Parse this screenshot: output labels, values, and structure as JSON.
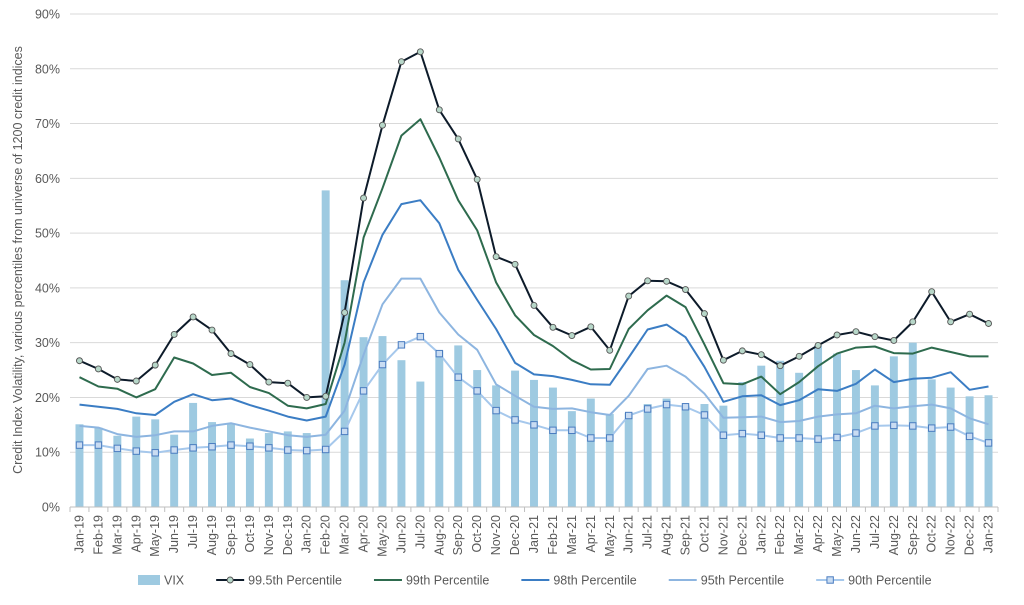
{
  "chart_data": {
    "type": "bar",
    "title": "",
    "xlabel": "",
    "ylabel": "Credit Index Volatility, various percentiles from universe of 1200 credit indices",
    "ylim": [
      0,
      90
    ],
    "ytick_labels": [
      "0%",
      "10%",
      "20%",
      "30%",
      "40%",
      "50%",
      "60%",
      "70%",
      "80%",
      "90%"
    ],
    "grid": "horizontal",
    "legend_position": "bottom",
    "categories": [
      "Jan-19",
      "Feb-19",
      "Mar-19",
      "Apr-19",
      "May-19",
      "Jun-19",
      "Jul-19",
      "Aug-19",
      "Sep-19",
      "Oct-19",
      "Nov-19",
      "Dec-19",
      "Jan-20",
      "Feb-20",
      "Mar-20",
      "Apr-20",
      "May-20",
      "Jun-20",
      "Jul-20",
      "Aug-20",
      "Sep-20",
      "Oct-20",
      "Nov-20",
      "Dec-20",
      "Jan-21",
      "Feb-21",
      "Mar-21",
      "Apr-21",
      "May-21",
      "Jun-21",
      "Jul-21",
      "Aug-21",
      "Sep-21",
      "Oct-21",
      "Nov-21",
      "Dec-21",
      "Jan-22",
      "Feb-22",
      "Mar-22",
      "Apr-22",
      "May-22",
      "Jun-22",
      "Jul-22",
      "Aug-22",
      "Sep-22",
      "Oct-22",
      "Nov-22",
      "Dec-22",
      "Jan-23"
    ],
    "series": [
      {
        "name": "VIX",
        "kind": "bar",
        "color": "#9ecae1",
        "values": [
          15.1,
          14.5,
          13.0,
          16.5,
          16.0,
          13.2,
          19.0,
          15.5,
          15.3,
          12.5,
          13.5,
          13.8,
          13.5,
          57.8,
          41.4,
          31.0,
          31.2,
          26.8,
          22.9,
          28.6,
          29.5,
          25.0,
          22.2,
          24.9,
          23.2,
          21.8,
          17.5,
          19.8,
          17.0,
          17.2,
          18.8,
          19.8,
          18.5,
          18.8,
          18.5,
          22.8,
          25.8,
          26.7,
          24.5,
          29.5,
          28.0,
          25.0,
          22.2,
          27.5,
          30.0,
          23.3,
          21.8,
          20.2,
          20.4
        ]
      },
      {
        "name": "99.5th Percentile",
        "kind": "line",
        "color": "#0d1b2a",
        "marker": "circle",
        "values": [
          26.7,
          25.2,
          23.3,
          23.0,
          25.9,
          31.5,
          34.7,
          32.3,
          28.0,
          26.0,
          22.8,
          22.6,
          20.0,
          20.2,
          35.5,
          56.4,
          69.7,
          81.3,
          83.1,
          72.5,
          67.2,
          59.8,
          45.7,
          44.3,
          36.8,
          32.8,
          31.3,
          32.9,
          28.6,
          38.5,
          41.3,
          41.2,
          39.7,
          35.3,
          26.8,
          28.5,
          27.8,
          25.8,
          27.5,
          29.5,
          31.4,
          32.0,
          31.1,
          30.4,
          33.8,
          39.3,
          33.8,
          35.2,
          33.5
        ]
      },
      {
        "name": "99th Percentile",
        "kind": "line",
        "color": "#2e6b4e",
        "marker": "none",
        "values": [
          23.7,
          22.0,
          21.6,
          20.0,
          21.5,
          27.3,
          26.2,
          24.1,
          24.5,
          21.9,
          20.8,
          18.5,
          18.0,
          18.8,
          30.0,
          49.2,
          58.2,
          67.8,
          70.8,
          63.8,
          56.0,
          50.5,
          41.0,
          35.0,
          31.4,
          29.4,
          26.8,
          25.1,
          25.2,
          32.5,
          35.9,
          38.6,
          36.5,
          29.7,
          22.6,
          22.4,
          23.8,
          20.6,
          22.8,
          25.7,
          28.0,
          29.1,
          29.3,
          28.1,
          28.0,
          29.1,
          28.3,
          27.5,
          27.5
        ]
      },
      {
        "name": "98th Percentile",
        "kind": "line",
        "color": "#3b7dc4",
        "marker": "none",
        "values": [
          18.7,
          18.3,
          17.9,
          17.1,
          16.8,
          19.2,
          20.6,
          19.5,
          19.8,
          18.6,
          17.6,
          16.5,
          15.8,
          16.5,
          26.0,
          41.0,
          49.7,
          55.3,
          56.0,
          51.8,
          43.3,
          37.8,
          32.5,
          26.3,
          24.2,
          23.9,
          23.2,
          22.4,
          22.3,
          27.3,
          32.4,
          33.3,
          31.0,
          25.6,
          19.2,
          20.2,
          20.4,
          18.6,
          19.5,
          21.5,
          21.2,
          22.5,
          25.1,
          22.8,
          23.4,
          23.6,
          24.6,
          21.4,
          22.0
        ]
      },
      {
        "name": "95th Percentile",
        "kind": "line",
        "color": "#8db5e0",
        "marker": "none",
        "values": [
          14.8,
          14.5,
          13.3,
          12.8,
          13.1,
          13.8,
          13.8,
          14.8,
          15.3,
          14.5,
          13.8,
          13.1,
          12.8,
          13.2,
          17.6,
          27.8,
          37.0,
          41.7,
          41.7,
          35.5,
          31.5,
          28.7,
          22.4,
          20.3,
          18.3,
          17.9,
          18.0,
          17.3,
          16.8,
          20.3,
          25.2,
          25.8,
          23.8,
          20.7,
          16.3,
          16.4,
          16.5,
          15.5,
          15.7,
          16.5,
          16.9,
          17.1,
          18.5,
          18.0,
          18.4,
          18.7,
          18.0,
          16.2,
          15.1
        ]
      },
      {
        "name": "90th Percentile",
        "kind": "line",
        "color": "#a6c8ec",
        "marker": "square",
        "values": [
          11.3,
          11.3,
          10.7,
          10.2,
          9.9,
          10.4,
          10.8,
          11.0,
          11.3,
          11.1,
          10.8,
          10.4,
          10.3,
          10.5,
          13.8,
          21.2,
          26.0,
          29.6,
          31.1,
          28.0,
          23.7,
          21.2,
          17.6,
          15.9,
          15.0,
          14.0,
          14.0,
          12.6,
          12.6,
          16.7,
          17.9,
          18.7,
          18.3,
          16.8,
          13.1,
          13.4,
          13.1,
          12.6,
          12.6,
          12.4,
          12.7,
          13.5,
          14.8,
          14.9,
          14.8,
          14.4,
          14.6,
          12.9,
          11.7
        ]
      }
    ]
  }
}
